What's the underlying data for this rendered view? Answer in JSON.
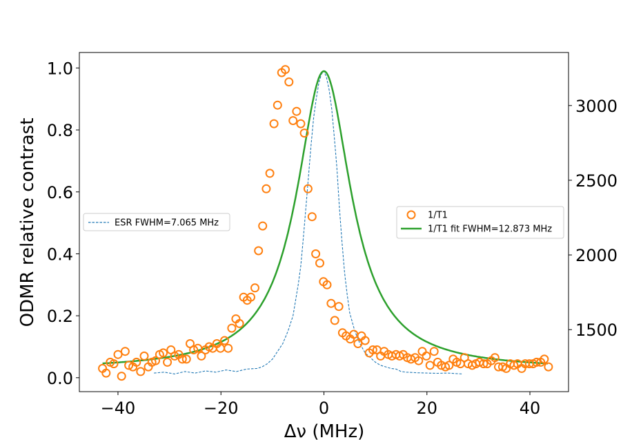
{
  "chart_data": {
    "type": "line",
    "title": "",
    "xlabel": "Δν (MHz)",
    "ylabel": "ODMR relative contrast",
    "y2label": "",
    "xlim": [
      -47.5,
      47.5
    ],
    "ylim": [
      -0.045,
      1.05
    ],
    "y2lim": [
      1085,
      3355
    ],
    "xticks": [
      -40,
      -20,
      0,
      20,
      40
    ],
    "xtick_labels": [
      "−40",
      "−20",
      "0",
      "20",
      "40"
    ],
    "yticks": [
      0.0,
      0.2,
      0.4,
      0.6,
      0.8,
      1.0
    ],
    "ytick_labels": [
      "0.0",
      "0.2",
      "0.4",
      "0.6",
      "0.8",
      "1.0"
    ],
    "y2ticks": [
      1500,
      2000,
      2500,
      3000
    ],
    "y2tick_labels": [
      "1500",
      "2000",
      "2500",
      "3000"
    ],
    "grid": false,
    "colors": {
      "esr": "#1f77b4",
      "t1": "#ff7f0e",
      "fit": "#2ca02c"
    },
    "legends": [
      {
        "placement": "center-left",
        "entries": [
          "ESR FWHM=7.065 MHz"
        ]
      },
      {
        "placement": "center-right",
        "entries": [
          "1/T1",
          "1/T1 fit FWHM=12.873 MHz"
        ]
      }
    ],
    "series": [
      {
        "name": "ESR FWHM=7.065 MHz",
        "kind": "dashed-line",
        "axis": "left",
        "x": [
          -33,
          -31,
          -29,
          -27,
          -25,
          -23,
          -21,
          -19,
          -17,
          -15,
          -13,
          -12,
          -11,
          -10,
          -9,
          -8,
          -7,
          -6,
          -5,
          -4.5,
          -4,
          -3.5,
          -3,
          -2.5,
          -2,
          -1.5,
          -1,
          -0.5,
          0,
          0.5,
          1,
          1.5,
          2,
          2.5,
          3,
          3.5,
          4,
          4.5,
          5,
          6,
          7,
          8,
          9,
          10,
          11,
          12,
          13,
          14,
          15,
          16,
          18,
          20,
          22,
          24,
          26,
          27
        ],
        "y": [
          0.015,
          0.018,
          0.012,
          0.02,
          0.015,
          0.022,
          0.018,
          0.025,
          0.02,
          0.028,
          0.03,
          0.035,
          0.045,
          0.06,
          0.085,
          0.11,
          0.15,
          0.2,
          0.3,
          0.36,
          0.45,
          0.55,
          0.65,
          0.75,
          0.84,
          0.9,
          0.95,
          0.98,
          0.99,
          0.97,
          0.93,
          0.87,
          0.78,
          0.68,
          0.55,
          0.44,
          0.34,
          0.27,
          0.21,
          0.15,
          0.11,
          0.08,
          0.065,
          0.05,
          0.04,
          0.035,
          0.03,
          0.028,
          0.02,
          0.018,
          0.016,
          0.015,
          0.014,
          0.015,
          0.013,
          0.012
        ]
      },
      {
        "name": "1/T1",
        "kind": "markers",
        "axis": "left",
        "x": [
          -43,
          -42.3,
          -41.5,
          -40.8,
          -40,
          -39.3,
          -38.6,
          -37.9,
          -37.1,
          -36.4,
          -35.6,
          -34.9,
          -34.1,
          -33.4,
          -32.7,
          -31.9,
          -31.2,
          -30.4,
          -29.7,
          -29,
          -28.2,
          -27.5,
          -26.7,
          -26,
          -25.3,
          -24.5,
          -23.8,
          -23,
          -22.3,
          -21.6,
          -20.8,
          -20.1,
          -19.3,
          -18.6,
          -17.9,
          -17.1,
          -16.4,
          -15.6,
          -14.9,
          -14.2,
          -13.4,
          -12.7,
          -11.9,
          -11.2,
          -10.5,
          -9.7,
          -9,
          -8.2,
          -7.5,
          -6.8,
          -6,
          -5.3,
          -4.5,
          -3.8,
          -3.1,
          -2.3,
          -1.6,
          -0.8,
          -0.1,
          0.6,
          1.4,
          2.1,
          2.9,
          3.6,
          4.3,
          5.1,
          5.8,
          6.6,
          7.3,
          8,
          8.8,
          9.5,
          10.3,
          11,
          11.7,
          12.5,
          13.2,
          14,
          14.7,
          15.4,
          16.2,
          16.9,
          17.7,
          18.4,
          19.1,
          19.9,
          20.6,
          21.4,
          22.1,
          22.8,
          23.6,
          24.3,
          25.1,
          25.8,
          26.5,
          27.3,
          28,
          28.8,
          29.5,
          30.2,
          31,
          31.7,
          32.5,
          33.2,
          33.9,
          34.7,
          35.4,
          36.2,
          36.9,
          37.6,
          38.4,
          39.1,
          39.9,
          40.6,
          41.3,
          42.1,
          42.8,
          43.6
        ],
        "y": [
          0.03,
          0.015,
          0.05,
          0.045,
          0.075,
          0.005,
          0.085,
          0.04,
          0.035,
          0.05,
          0.02,
          0.07,
          0.035,
          0.05,
          0.055,
          0.075,
          0.08,
          0.05,
          0.09,
          0.07,
          0.075,
          0.06,
          0.06,
          0.11,
          0.09,
          0.095,
          0.07,
          0.09,
          0.1,
          0.095,
          0.11,
          0.095,
          0.12,
          0.095,
          0.16,
          0.19,
          0.175,
          0.26,
          0.25,
          0.26,
          0.29,
          0.41,
          0.49,
          0.61,
          0.66,
          0.82,
          0.88,
          0.985,
          0.995,
          0.955,
          0.83,
          0.86,
          0.82,
          0.79,
          0.61,
          0.52,
          0.4,
          0.37,
          0.31,
          0.3,
          0.24,
          0.185,
          0.23,
          0.145,
          0.135,
          0.125,
          0.14,
          0.11,
          0.135,
          0.12,
          0.08,
          0.09,
          0.09,
          0.07,
          0.085,
          0.075,
          0.07,
          0.075,
          0.07,
          0.075,
          0.065,
          0.06,
          0.065,
          0.055,
          0.085,
          0.07,
          0.04,
          0.085,
          0.05,
          0.04,
          0.035,
          0.04,
          0.06,
          0.05,
          0.045,
          0.065,
          0.045,
          0.04,
          0.045,
          0.05,
          0.045,
          0.045,
          0.055,
          0.065,
          0.035,
          0.035,
          0.03,
          0.045,
          0.04,
          0.045,
          0.03,
          0.045,
          0.045,
          0.045,
          0.05,
          0.05,
          0.06,
          0.035
        ]
      },
      {
        "name": "1/T1 fit FWHM=12.873 MHz",
        "kind": "line",
        "axis": "left",
        "model": {
          "shape": "lorentzian",
          "center": 0,
          "fwhm": 12.873,
          "amplitude": 0.965,
          "offset": 0.025,
          "xrange": [
            -43,
            43.5
          ]
        }
      }
    ]
  }
}
